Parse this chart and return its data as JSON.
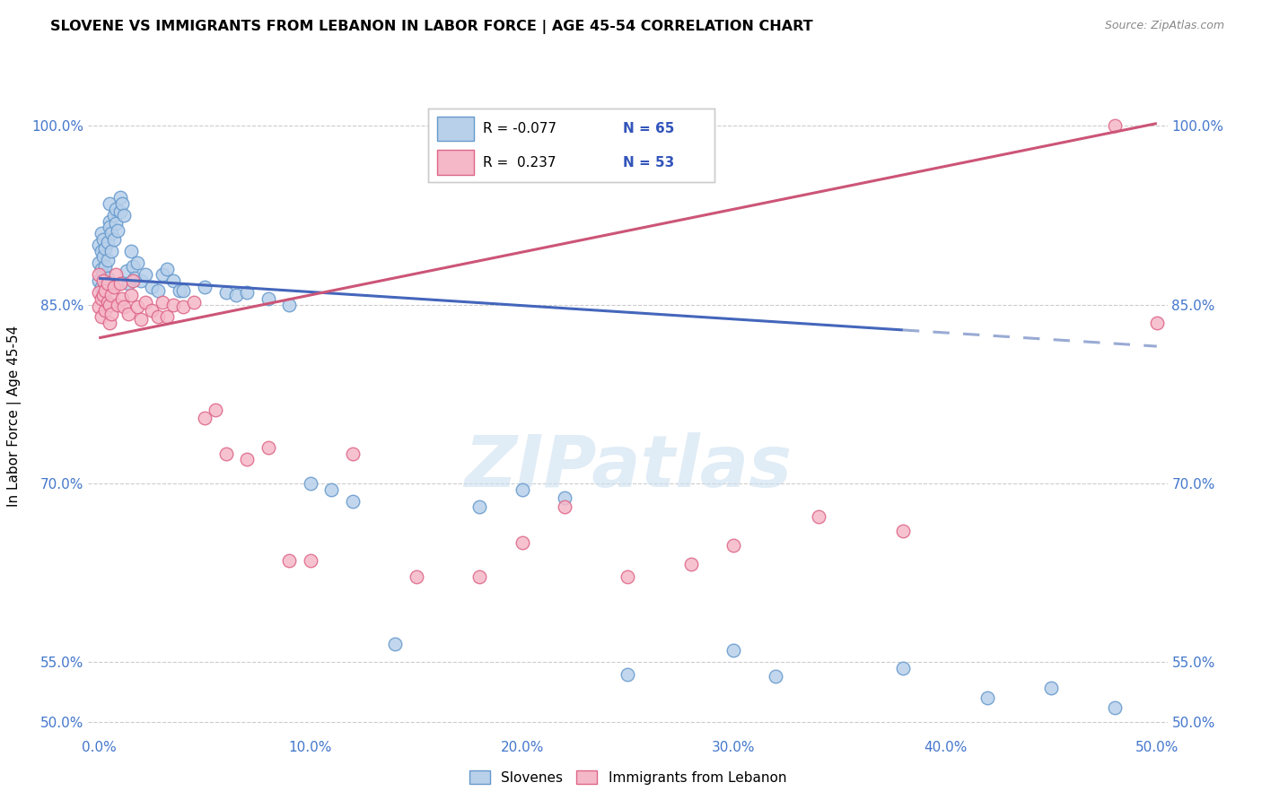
{
  "title": "SLOVENE VS IMMIGRANTS FROM LEBANON IN LABOR FORCE | AGE 45-54 CORRELATION CHART",
  "source": "Source: ZipAtlas.com",
  "ylabel": "In Labor Force | Age 45-54",
  "xlim": [
    -0.005,
    0.505
  ],
  "ylim": [
    0.488,
    1.025
  ],
  "ytick_labels": [
    "50.0%",
    "55.0%",
    "70.0%",
    "85.0%",
    "100.0%"
  ],
  "ytick_values": [
    0.5,
    0.55,
    0.7,
    0.85,
    1.0
  ],
  "xtick_labels": [
    "0.0%",
    "10.0%",
    "20.0%",
    "30.0%",
    "40.0%",
    "50.0%"
  ],
  "xtick_values": [
    0.0,
    0.1,
    0.2,
    0.3,
    0.4,
    0.5
  ],
  "blue_R": "-0.077",
  "blue_N": "65",
  "pink_R": "0.237",
  "pink_N": "53",
  "blue_color": "#b8d0ea",
  "pink_color": "#f5b8c8",
  "blue_edge": "#6699cc",
  "pink_edge": "#dd6688",
  "blue_line_color": "#4466bb",
  "pink_line_color": "#cc5577",
  "blue_line_dash_color": "#99aad4",
  "blue_line_ystart": 0.872,
  "blue_line_yend": 0.815,
  "blue_line_solid_end_x": 0.38,
  "pink_line_ystart": 0.822,
  "pink_line_yend": 1.002,
  "watermark_text": "ZIPatlas",
  "watermark_color": "#cce0f0",
  "blue_scatter_x": [
    0.0,
    0.0,
    0.0,
    0.001,
    0.001,
    0.001,
    0.001,
    0.002,
    0.002,
    0.002,
    0.003,
    0.003,
    0.003,
    0.004,
    0.004,
    0.004,
    0.005,
    0.005,
    0.005,
    0.006,
    0.006,
    0.007,
    0.007,
    0.008,
    0.008,
    0.009,
    0.01,
    0.01,
    0.011,
    0.012,
    0.013,
    0.014,
    0.015,
    0.016,
    0.017,
    0.018,
    0.02,
    0.022,
    0.025,
    0.028,
    0.03,
    0.032,
    0.035,
    0.038,
    0.04,
    0.05,
    0.06,
    0.065,
    0.07,
    0.08,
    0.09,
    0.1,
    0.11,
    0.12,
    0.14,
    0.18,
    0.2,
    0.22,
    0.25,
    0.3,
    0.32,
    0.38,
    0.42,
    0.45,
    0.48
  ],
  "blue_scatter_y": [
    0.87,
    0.885,
    0.9,
    0.865,
    0.88,
    0.895,
    0.91,
    0.875,
    0.89,
    0.905,
    0.868,
    0.882,
    0.897,
    0.872,
    0.887,
    0.902,
    0.92,
    0.935,
    0.915,
    0.895,
    0.91,
    0.925,
    0.905,
    0.93,
    0.918,
    0.912,
    0.94,
    0.928,
    0.935,
    0.925,
    0.878,
    0.868,
    0.895,
    0.882,
    0.872,
    0.885,
    0.87,
    0.875,
    0.865,
    0.862,
    0.875,
    0.88,
    0.87,
    0.862,
    0.862,
    0.865,
    0.86,
    0.858,
    0.86,
    0.855,
    0.85,
    0.7,
    0.695,
    0.685,
    0.565,
    0.68,
    0.695,
    0.688,
    0.54,
    0.56,
    0.538,
    0.545,
    0.52,
    0.528,
    0.512
  ],
  "pink_scatter_x": [
    0.0,
    0.0,
    0.0,
    0.001,
    0.001,
    0.002,
    0.002,
    0.003,
    0.003,
    0.004,
    0.004,
    0.005,
    0.005,
    0.006,
    0.006,
    0.007,
    0.008,
    0.009,
    0.01,
    0.011,
    0.012,
    0.014,
    0.015,
    0.016,
    0.018,
    0.02,
    0.022,
    0.025,
    0.028,
    0.03,
    0.032,
    0.035,
    0.04,
    0.045,
    0.05,
    0.055,
    0.06,
    0.07,
    0.08,
    0.09,
    0.1,
    0.12,
    0.15,
    0.18,
    0.2,
    0.22,
    0.25,
    0.28,
    0.3,
    0.34,
    0.38,
    0.48,
    0.5
  ],
  "pink_scatter_y": [
    0.86,
    0.875,
    0.848,
    0.84,
    0.855,
    0.87,
    0.858,
    0.845,
    0.862,
    0.852,
    0.868,
    0.835,
    0.85,
    0.842,
    0.858,
    0.865,
    0.875,
    0.85,
    0.868,
    0.855,
    0.848,
    0.842,
    0.858,
    0.87,
    0.848,
    0.838,
    0.852,
    0.845,
    0.84,
    0.852,
    0.84,
    0.85,
    0.848,
    0.852,
    0.755,
    0.762,
    0.725,
    0.72,
    0.73,
    0.635,
    0.635,
    0.725,
    0.622,
    0.622,
    0.65,
    0.68,
    0.622,
    0.632,
    0.648,
    0.672,
    0.66,
    1.0,
    0.835
  ]
}
